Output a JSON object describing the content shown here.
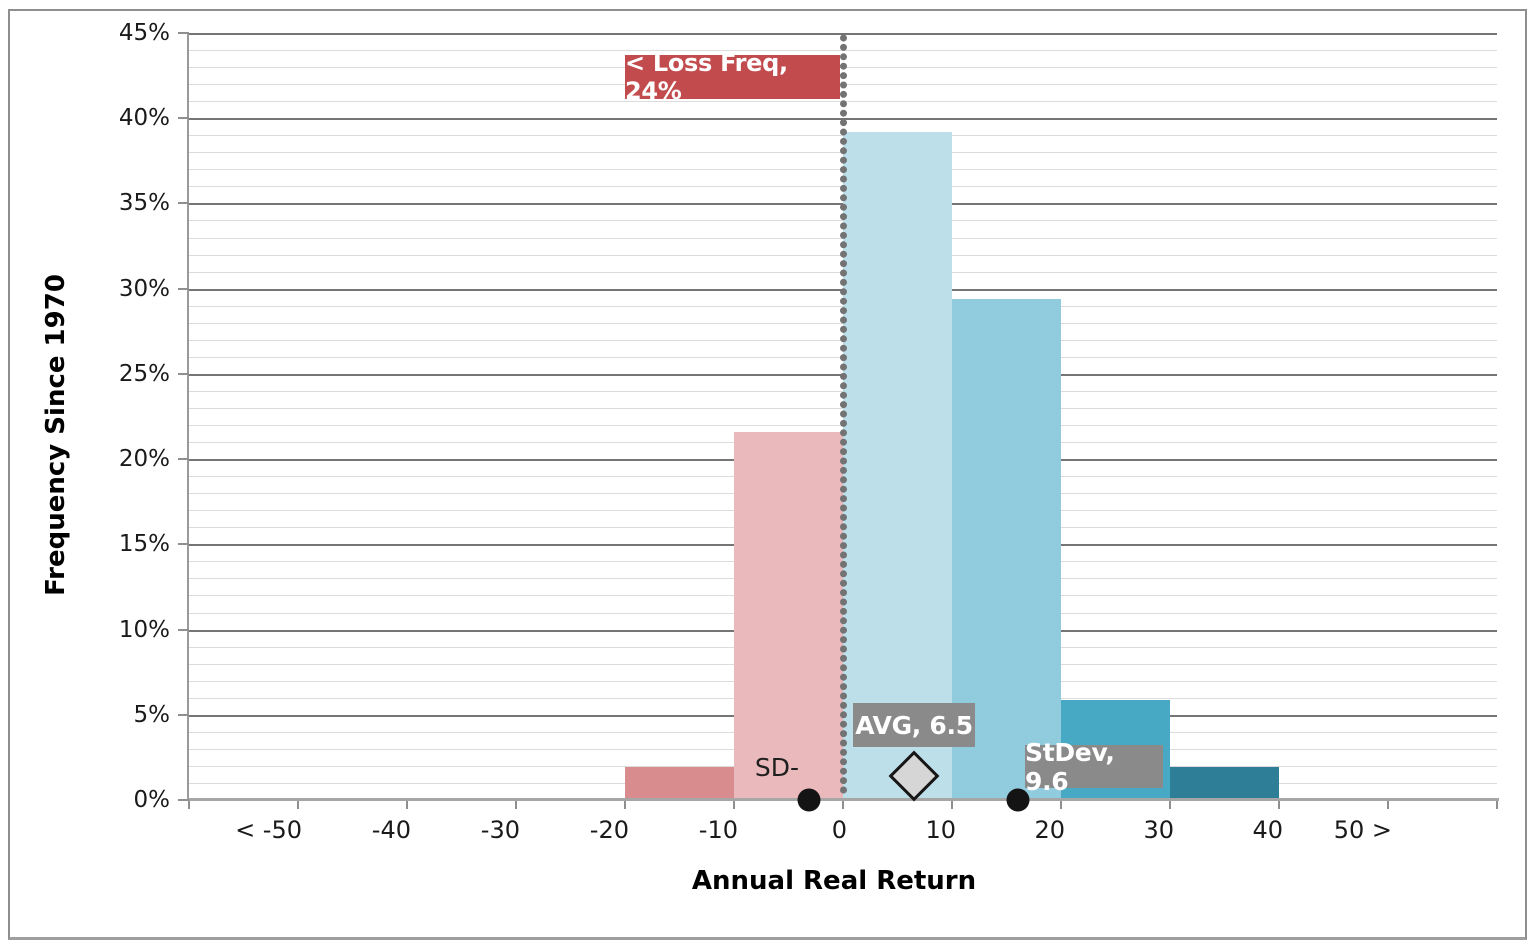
{
  "chart_data": {
    "type": "bar",
    "subtype": "histogram",
    "title": "",
    "xlabel": "Annual Real Return",
    "ylabel": "Frequency Since 1970",
    "x_tick_labels": [
      "< -50",
      "-40",
      "-30",
      "-20",
      "-10",
      "0",
      "10",
      "20",
      "30",
      "40",
      "50 >"
    ],
    "y_tick_labels": [
      "0%",
      "5%",
      "10%",
      "15%",
      "20%",
      "25%",
      "30%",
      "35%",
      "40%",
      "45%"
    ],
    "ylim": [
      0,
      45
    ],
    "y_major_step_pct": 5,
    "y_minor_step_pct": 1,
    "grid": "on",
    "legend": "none",
    "bins": [
      {
        "from": -20,
        "to": -10,
        "value_pct": 1.96,
        "color": "#d98c8e"
      },
      {
        "from": -10,
        "to": 0,
        "value_pct": 21.57,
        "color": "#eab9bc"
      },
      {
        "from": 0,
        "to": 10,
        "value_pct": 39.22,
        "color": "#bcdfea"
      },
      {
        "from": 10,
        "to": 20,
        "value_pct": 29.41,
        "color": "#90cbde"
      },
      {
        "from": 20,
        "to": 30,
        "value_pct": 5.88,
        "color": "#48a9c5"
      },
      {
        "from": 30,
        "to": 40,
        "value_pct": 1.96,
        "color": "#2d7e96"
      }
    ],
    "zero_reference_line": {
      "x": 0,
      "style": "dotted",
      "color": "#737373"
    }
  },
  "annotations": {
    "loss_freq": {
      "label": "< Loss Freq, 24%",
      "value_pct": 24,
      "box_color": "#c24b4d",
      "text_color": "#ffffff"
    },
    "avg": {
      "label": "AVG, 6.5",
      "value": 6.5,
      "marker": "diamond",
      "marker_fill": "#d6d6d6",
      "marker_border": "#161616",
      "box_color": "#8a8a8a",
      "text_color": "#ffffff"
    },
    "stdev": {
      "label": "StDev, 9.6",
      "value": 9.6,
      "box_color": "#8a8a8a",
      "text_color": "#ffffff"
    },
    "sd_minus": {
      "label": "SD-",
      "x": -3.1,
      "marker": "dot",
      "marker_color": "#141414"
    },
    "sd_plus": {
      "x": 16.1,
      "marker": "dot",
      "marker_color": "#141414"
    }
  },
  "style_colors": {
    "major_gridline": "#757575",
    "minor_gridline": "#dcdcdc",
    "axis_line": "#a6a6a6",
    "frame_border": "#8e8e8e",
    "background": "#ffffff"
  }
}
